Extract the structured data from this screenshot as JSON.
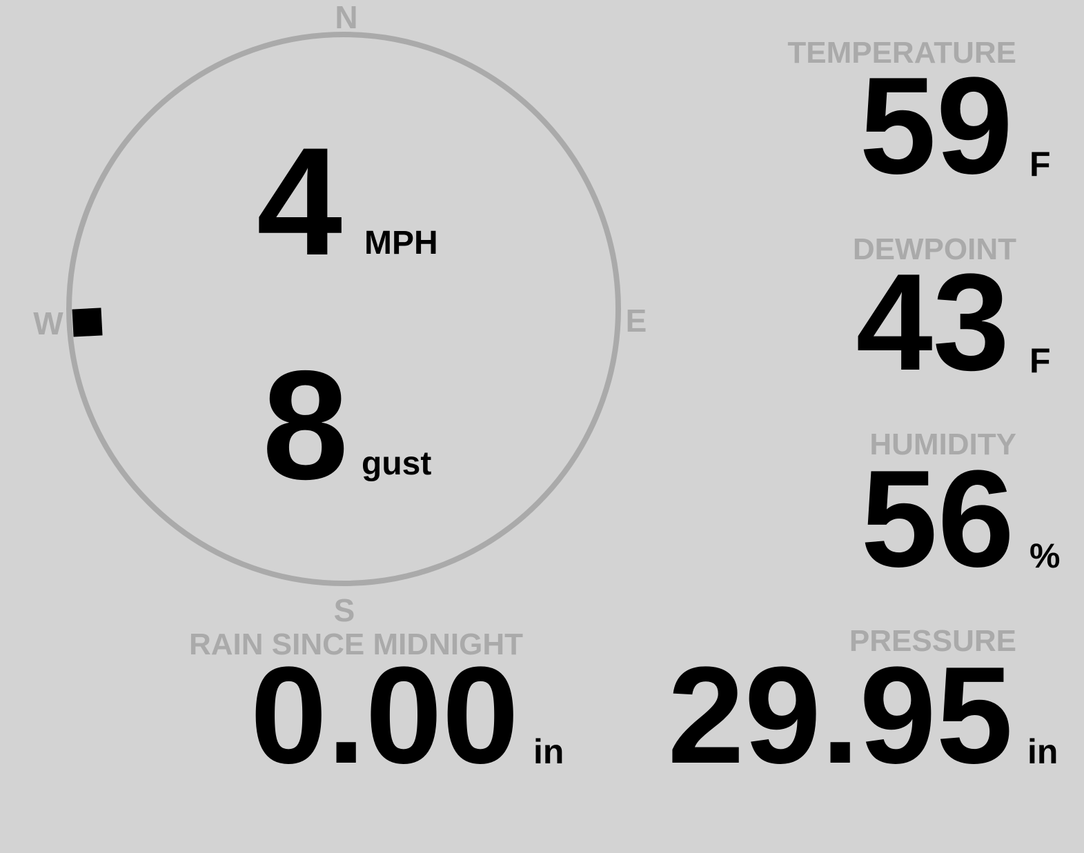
{
  "colors": {
    "background": "#d3d3d3",
    "label": "#aaaaaa",
    "value": "#000000",
    "compass_ring": "#aaaaaa"
  },
  "wind": {
    "speed": "4",
    "speed_unit": "MPH",
    "gust": "8",
    "gust_unit": "gust",
    "direction_degrees": 267,
    "compass": {
      "n": "N",
      "e": "E",
      "s": "S",
      "w": "W"
    }
  },
  "temperature": {
    "label": "TEMPERATURE",
    "value": "59",
    "unit": "F"
  },
  "dewpoint": {
    "label": "DEWPOINT",
    "value": "43",
    "unit": "F"
  },
  "humidity": {
    "label": "HUMIDITY",
    "value": "56",
    "unit": "%"
  },
  "pressure": {
    "label": "PRESSURE",
    "value": "29.95",
    "unit": "in"
  },
  "rain": {
    "label": "RAIN SINCE MIDNIGHT",
    "value": "0.00",
    "unit": "in"
  }
}
